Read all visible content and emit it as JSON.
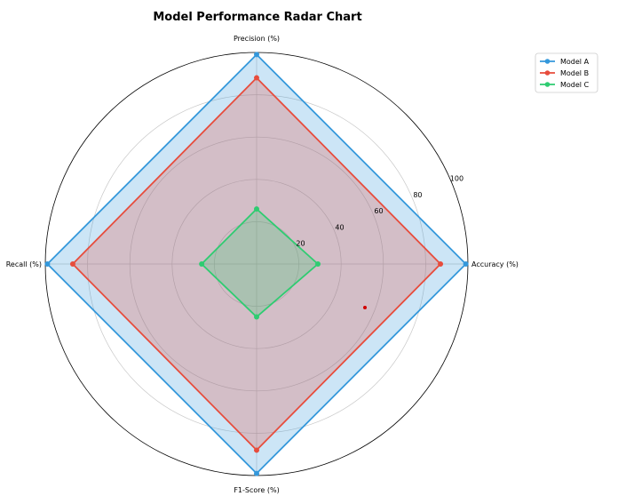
{
  "chart_data": {
    "type": "radar",
    "title": "Model Performance Radar Chart",
    "axes": [
      "Accuracy (%)",
      "Precision (%)",
      "Recall (%)",
      "F1-Score (%)"
    ],
    "rlim": [
      0,
      100
    ],
    "rticks": [
      20,
      40,
      60,
      80,
      100
    ],
    "grid": true,
    "legend_position": "top-right",
    "series": [
      {
        "name": "Model A",
        "values": [
          99,
          99,
          99,
          99
        ],
        "color": "#3498db"
      },
      {
        "name": "Model B",
        "values": [
          87,
          88,
          87,
          88
        ],
        "color": "#e74c3c"
      },
      {
        "name": "Model C",
        "values": [
          29,
          26,
          26,
          25
        ],
        "color": "#2ecc71"
      }
    ]
  }
}
